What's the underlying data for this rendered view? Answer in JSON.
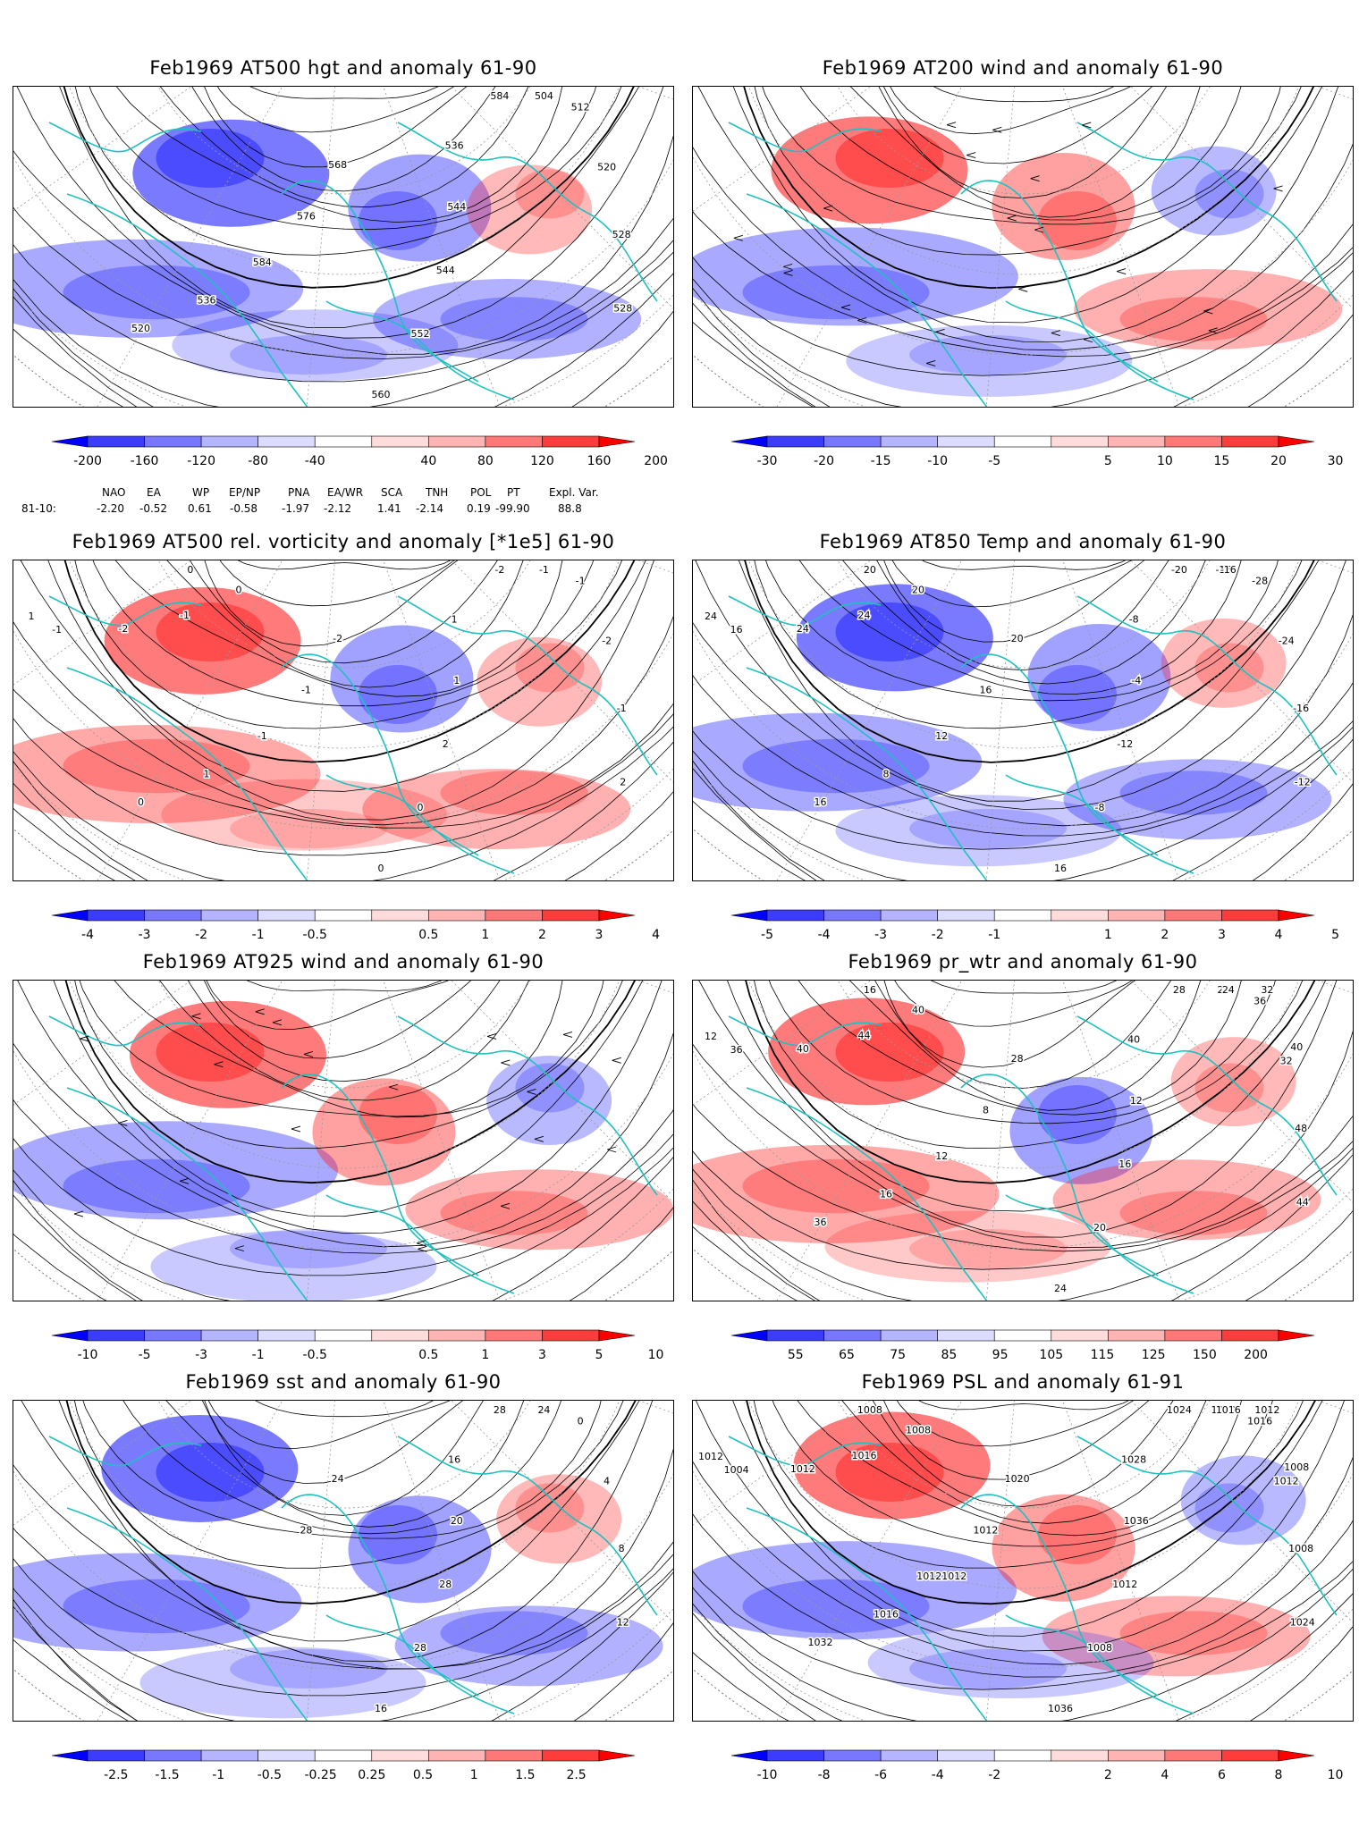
{
  "panels": [
    {
      "title": "Feb1969 AT500 hgt and anomaly 61-90",
      "colorbar": {
        "labels": [
          "-200",
          "-160",
          "-120",
          "-80",
          "-40",
          "40",
          "80",
          "120",
          "160",
          "200"
        ],
        "label_at": "edges"
      },
      "contour_labels": [
        "584",
        "504",
        "512",
        "520",
        "528",
        "528",
        "536",
        "544",
        "544",
        "552",
        "560",
        "568",
        "576",
        "584",
        "536",
        "520"
      ]
    },
    {
      "title": "Feb1969 AT200 wind and anomaly 61-90",
      "colorbar": {
        "labels": [
          "-30",
          "-20",
          "-15",
          "-10",
          "-5",
          "5",
          "10",
          "15",
          "20",
          "30"
        ],
        "label_at": "edges"
      },
      "contour_labels": []
    },
    {
      "title": "Feb1969 AT500 rel. vorticity and anomaly [*1e5] 61-90",
      "colorbar": {
        "labels": [
          "-4",
          "-3",
          "-2",
          "-1",
          "-0.5",
          "0.5",
          "1",
          "2",
          "3",
          "4"
        ],
        "label_at": "edges"
      },
      "contour_labels": [
        "-2",
        "-1",
        "-1",
        "-2",
        "-1",
        "2",
        "1",
        "1",
        "2",
        "0",
        "0",
        "-2",
        "-1",
        "-1",
        "1",
        "0",
        "0",
        "-1",
        "-2",
        "-1",
        "1",
        "0"
      ]
    },
    {
      "title": "Feb1969 AT850 Temp and anomaly 61-90",
      "colorbar": {
        "labels": [
          "-5",
          "-4",
          "-3",
          "-2",
          "-1",
          "1",
          "2",
          "3",
          "4",
          "5"
        ],
        "label_at": "edges"
      },
      "contour_labels": [
        "-20",
        "-16",
        "-28",
        "-24",
        "-16",
        "-12",
        "-8",
        "-4",
        "-12",
        "-8",
        "16",
        "20",
        "16",
        "12",
        "8",
        "16",
        "20",
        "24",
        "24",
        "16",
        "24",
        "20",
        "-16"
      ]
    },
    {
      "title": "Feb1969 AT925 wind and anomaly 61-90",
      "colorbar": {
        "labels": [
          "-10",
          "-5",
          "-3",
          "-1",
          "-0.5",
          "0.5",
          "1",
          "3",
          "5",
          "10"
        ],
        "label_at": "edges"
      },
      "contour_labels": []
    },
    {
      "title": "Feb1969 pr_wtr and anomaly 61-90",
      "colorbar": {
        "labels": [
          "55",
          "65",
          "75",
          "85",
          "95",
          "105",
          "115",
          "125",
          "150",
          "200"
        ],
        "label_at": "centers"
      },
      "contour_labels": [
        "28",
        "24",
        "36",
        "32",
        "48",
        "44",
        "40",
        "12",
        "16",
        "20",
        "24",
        "28",
        "8",
        "12",
        "16",
        "36",
        "40",
        "44",
        "40",
        "36",
        "12",
        "16",
        "24",
        "32",
        "40"
      ]
    },
    {
      "title": "Feb1969 sst and anomaly 61-90",
      "colorbar": {
        "labels": [
          "-2.5",
          "-1.5",
          "-1",
          "-0.5",
          "-0.25",
          "0.25",
          "0.5",
          "1",
          "1.5",
          "2.5"
        ],
        "label_at": "centers"
      },
      "contour_labels": [
        "28",
        "24",
        "0",
        "4",
        "8",
        "12",
        "16",
        "20",
        "28",
        "28",
        "16",
        "24",
        "28"
      ]
    },
    {
      "title": "Feb1969 PSL and anomaly 61-91",
      "colorbar": {
        "labels": [
          "-10",
          "-8",
          "-6",
          "-4",
          "-2",
          "2",
          "4",
          "6",
          "8",
          "10"
        ],
        "label_at": "edges"
      },
      "contour_labels": [
        "1024",
        "1020",
        "1016",
        "1012",
        "1008",
        "1024",
        "1028",
        "1036",
        "1012",
        "1008",
        "1036",
        "1020",
        "1012",
        "10121012",
        "1016",
        "1032",
        "1008",
        "1016",
        "1012",
        "1004",
        "1012",
        "1008",
        "1016",
        "1012",
        "1008"
      ]
    }
  ],
  "indices": {
    "period_label": "81-10:",
    "names": [
      "NAO",
      "EA",
      "WP",
      "EP/NP",
      "PNA",
      "EA/WR",
      "SCA",
      "TNH",
      "POL",
      "PT",
      "Expl. Var."
    ],
    "values": [
      "-2.20",
      "-0.52",
      "0.61",
      "-0.58",
      "-1.97",
      "-2.12",
      "1.41",
      "-2.14",
      "0.19",
      "-99.90",
      "88.8"
    ]
  },
  "colors": {
    "coast": "#20c0c0",
    "anom_pos": "#ff2020",
    "anom_neg": "#2020ff",
    "contour": "#000000"
  }
}
